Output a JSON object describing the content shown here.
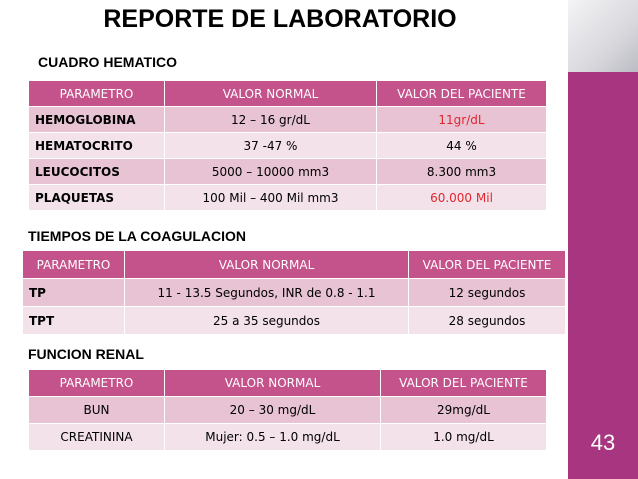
{
  "title": "REPORTE DE LABORATORIO",
  "page_number": "43",
  "tables": [
    {
      "heading": "CUADRO HEMATICO",
      "header": [
        "PARAMETRO",
        "VALOR NORMAL",
        "VALOR DEL PACIENTE"
      ],
      "rows": [
        [
          "HEMOGLOBINA",
          "12 – 16 gr/dL",
          {
            "text": "11gr/dL",
            "color": "#e3262e"
          }
        ],
        [
          "HEMATOCRITO",
          "37 -47 %",
          "44 %"
        ],
        [
          "LEUCOCITOS",
          "5000 – 10000 mm3",
          "8.300 mm3"
        ],
        [
          "PLAQUETAS",
          "100 Mil – 400 Mil mm3",
          {
            "text": "60.000 Mil",
            "color": "#e3262e"
          }
        ]
      ]
    },
    {
      "heading": "TIEMPOS DE LA COAGULACION",
      "header": [
        "PARAMETRO",
        "VALOR NORMAL",
        "VALOR DEL PACIENTE"
      ],
      "rows": [
        [
          "TP",
          "11 - 13.5 Segundos,  INR de 0.8 - 1.1",
          "12 segundos"
        ],
        [
          "TPT",
          "25 a 35 segundos",
          "28 segundos"
        ]
      ]
    },
    {
      "heading": "FUNCION RENAL",
      "header": [
        "PARAMETRO",
        "VALOR NORMAL",
        "VALOR DEL PACIENTE"
      ],
      "rows": [
        [
          "BUN",
          "20 – 30 mg/dL",
          "29mg/dL"
        ],
        [
          "CREATININA",
          "Mujer: 0.5 – 1.0 mg/dL",
          "1.0 mg/dL"
        ]
      ]
    }
  ]
}
